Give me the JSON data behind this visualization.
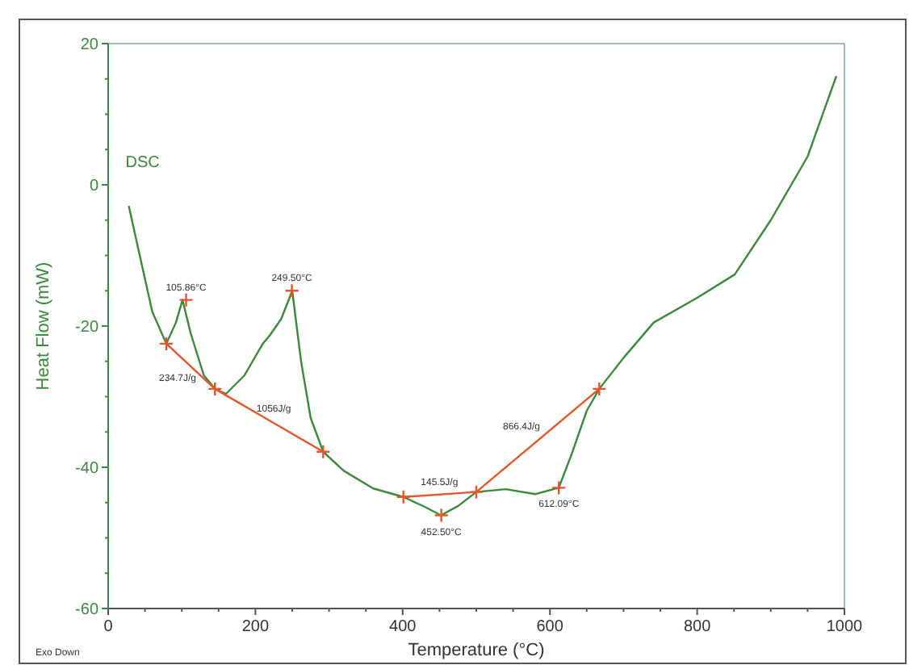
{
  "chart_data": {
    "type": "line",
    "xlabel": "Temperature (°C)",
    "ylabel": "Heat Flow (mW)",
    "xlim": [
      0,
      1000
    ],
    "ylim": [
      -60,
      20
    ],
    "xticks": [
      0,
      {
        "value": 50,
        "label": null
      },
      {
        "value": 100,
        "label": null
      },
      {
        "value": 150,
        "label": null
      },
      200,
      {
        "value": 250,
        "label": null
      },
      {
        "value": 300,
        "label": null
      },
      {
        "value": 350,
        "label": null
      },
      400,
      {
        "value": 450,
        "label": null
      },
      {
        "value": 500,
        "label": null
      },
      {
        "value": 550,
        "label": null
      },
      600,
      {
        "value": 650,
        "label": null
      },
      {
        "value": 700,
        "label": null
      },
      {
        "value": 750,
        "label": null
      },
      800,
      {
        "value": 850,
        "label": null
      },
      {
        "value": 900,
        "label": null
      },
      {
        "value": 950,
        "label": null
      },
      1000
    ],
    "yticks": [
      -60,
      {
        "value": -55,
        "label": null
      },
      {
        "value": -50,
        "label": null
      },
      {
        "value": -45,
        "label": null
      },
      -40,
      {
        "value": -35,
        "label": null
      },
      {
        "value": -30,
        "label": null
      },
      {
        "value": -25,
        "label": null
      },
      -20,
      {
        "value": -15,
        "label": null
      },
      {
        "value": -10,
        "label": null
      },
      {
        "value": -5,
        "label": null
      },
      0,
      {
        "value": 5,
        "label": null
      },
      {
        "value": 10,
        "label": null
      },
      {
        "value": 15,
        "label": null
      },
      20
    ],
    "grid": false,
    "series": [
      {
        "name": "DSC",
        "color": "#3a8a3a",
        "marker": "none",
        "x": [
          28,
          45,
          60,
          79,
          92,
          101,
          112,
          130,
          145,
          160,
          185,
          210,
          219,
          235,
          250,
          262,
          275,
          292,
          320,
          360,
          401,
          430,
          452,
          475,
          500,
          540,
          580,
          612,
          630,
          650,
          667,
          700,
          741,
          800,
          851,
          900,
          950,
          989
        ],
        "values": [
          -3,
          -11,
          -18,
          -22.5,
          -19.5,
          -16.3,
          -21,
          -27,
          -28.9,
          -29.6,
          -27,
          -22.5,
          -21.4,
          -19,
          -15,
          -25,
          -33,
          -37.8,
          -40.5,
          -43,
          -44.2,
          -45.6,
          -46.8,
          -45.5,
          -43.5,
          -43.1,
          -43.8,
          -42.9,
          -38,
          -32,
          -28.9,
          -24.5,
          -19.5,
          -16,
          -12.7,
          -5,
          4,
          15.4
        ]
      },
      {
        "color": "#e8552a",
        "marker": "cross",
        "x": [
          79,
          145,
          292
        ],
        "values": [
          -22.5,
          -28.9,
          -37.8
        ]
      },
      {
        "color": "#e8552a",
        "marker": "cross",
        "x": [
          401,
          500,
          667
        ],
        "values": [
          -44.2,
          -43.5,
          -28.9
        ]
      },
      {
        "color": "#e8552a",
        "type": "scatter",
        "marker": "cross",
        "x": [
          105.86,
          249.5,
          452.5,
          612.09
        ],
        "values": [
          -16.3,
          -15,
          -46.8,
          -42.9
        ]
      }
    ],
    "annotations": [
      {
        "text": "105.86°C",
        "x": 105.86,
        "y": -16.3
      },
      {
        "text": "249.50°C",
        "x": 249.5,
        "y": -15
      },
      {
        "text": "452.50°C",
        "x": 452.5,
        "y": -46.8
      },
      {
        "text": "612.09°C",
        "x": 612.09,
        "y": -42.9
      },
      "234.7J/g",
      {
        "text": "1056J/g",
        "x": 225,
        "y": -33.5
      },
      {
        "text": "145.5J/g",
        "x": 450,
        "y": -43.9
      },
      "866.4J/g",
      "Exo Down"
    ]
  }
}
